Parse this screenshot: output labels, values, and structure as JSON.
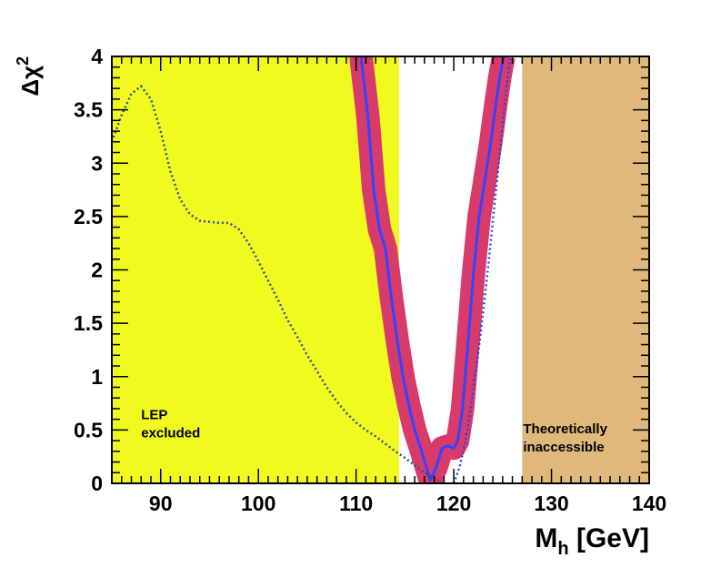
{
  "chart_data": {
    "type": "line",
    "title": "",
    "xlabel": "M",
    "xlabel_subscript": "h",
    "xlabel_unit": "[GeV]",
    "ylabel": "Δχ",
    "ylabel_superscript": "2",
    "xlim": [
      85,
      140
    ],
    "ylim": [
      0,
      4
    ],
    "x_ticks": [
      90,
      100,
      110,
      120,
      130,
      140
    ],
    "x_tick_labels": [
      "90",
      "100",
      "110",
      "120",
      "130",
      "140"
    ],
    "y_ticks": [
      0,
      0.5,
      1,
      1.5,
      2,
      2.5,
      3,
      3.5,
      4
    ],
    "y_tick_labels": [
      "0",
      "0.5",
      "1",
      "1.5",
      "2",
      "2.5",
      "3",
      "3.5",
      "4"
    ],
    "regions": [
      {
        "name": "LEP excluded",
        "label_lines": [
          "LEP",
          "excluded"
        ],
        "x_range": [
          85,
          114.4
        ],
        "color": "#f0fa1e",
        "label_at": [
          88,
          0.6
        ]
      },
      {
        "name": "Theoretically inaccessible",
        "label_lines": [
          "Theoretically",
          "inaccessible"
        ],
        "x_range": [
          127,
          140
        ],
        "color": "#dfb97b",
        "label_at": [
          127.1,
          0.47
        ]
      }
    ],
    "series": [
      {
        "name": "fit result",
        "style": "solid",
        "color": "#3344ff",
        "x": [
          110.5,
          111.2,
          111.8,
          112.4,
          113.0,
          113.6,
          114.2,
          114.8,
          115.4,
          116.0,
          116.6,
          117.2,
          117.6,
          118.2,
          118.8,
          119.4,
          120.0,
          120.4,
          120.9,
          121.4,
          122.0,
          122.6,
          123.2,
          123.8,
          124.3,
          124.7,
          125.1
        ],
        "y": [
          4.0,
          3.45,
          2.75,
          2.38,
          2.2,
          1.75,
          1.35,
          1.0,
          0.73,
          0.5,
          0.33,
          0.15,
          0.03,
          0.15,
          0.33,
          0.35,
          0.33,
          0.4,
          0.7,
          1.25,
          1.95,
          2.5,
          2.85,
          3.2,
          3.55,
          3.8,
          4.0
        ]
      },
      {
        "name": "theory uncertainty band",
        "style": "band",
        "color": "#d83a6a",
        "half_width_gev": 1.2
      },
      {
        "name": "fit without theory uncertainty",
        "style": "dotted",
        "color": "#304f8a",
        "x": [
          85.0,
          86.0,
          87.0,
          88.0,
          89.0,
          90.0,
          91.0,
          92.0,
          93.0,
          94.0,
          95.0,
          96.0,
          97.0,
          98.0,
          99.0,
          100.0,
          101.0,
          102.0,
          103.0,
          104.0,
          105.0,
          106.0,
          107.0,
          108.0,
          109.0,
          110.0,
          111.0,
          112.0,
          113.0,
          114.0,
          115.0,
          116.0,
          117.0,
          118.0,
          118.5,
          119.0
        ],
        "y": [
          3.2,
          3.45,
          3.65,
          3.72,
          3.6,
          3.3,
          2.92,
          2.66,
          2.52,
          2.46,
          2.45,
          2.44,
          2.44,
          2.38,
          2.25,
          2.08,
          1.9,
          1.72,
          1.53,
          1.37,
          1.2,
          1.05,
          0.9,
          0.77,
          0.66,
          0.57,
          0.5,
          0.44,
          0.37,
          0.3,
          0.24,
          0.17,
          0.1,
          0.05,
          0.02,
          0.0
        ]
      },
      {
        "name": "blue dotted right branch",
        "style": "dotted",
        "color": "#2244ee",
        "x": [
          120.0,
          120.6,
          121.2,
          121.8,
          122.4,
          123.0,
          123.6,
          124.1,
          124.6,
          125.1,
          125.5,
          125.8
        ],
        "y": [
          0.0,
          0.15,
          0.4,
          0.75,
          1.15,
          1.6,
          2.1,
          2.55,
          3.0,
          3.45,
          3.8,
          4.0
        ]
      }
    ]
  }
}
